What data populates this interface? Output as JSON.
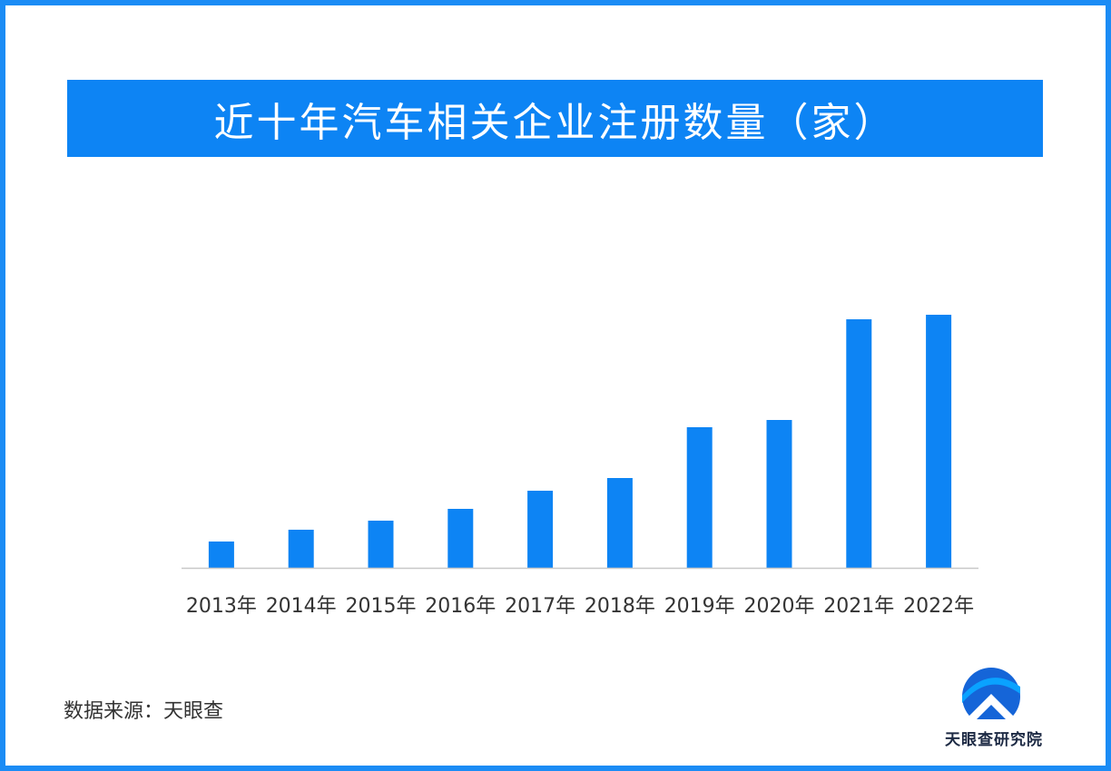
{
  "chart_data": {
    "type": "bar",
    "title": "近十年汽车相关企业注册数量（家）",
    "categories": [
      "2013年",
      "2014年",
      "2015年",
      "2016年",
      "2017年",
      "2018年",
      "2019年",
      "2020年",
      "2021年",
      "2022年"
    ],
    "values": [
      29,
      42,
      52,
      65,
      85,
      99,
      155,
      163,
      274,
      279
    ],
    "ylim": [
      0,
      300
    ],
    "grid": false,
    "legend": "none",
    "bar_color": "#0d84f4",
    "axis_color": "#c8c8c8"
  },
  "source": "数据来源：天眼查",
  "logo": {
    "text": "天眼查研究院",
    "primary_color": "#1565d8",
    "secondary_color": "#0aa2ff"
  }
}
